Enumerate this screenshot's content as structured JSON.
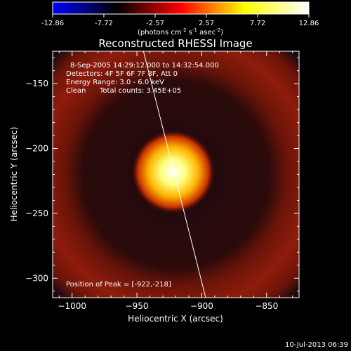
{
  "colorbar": {
    "ticks": [
      "-12.86",
      "-7.72",
      "-2.57",
      "2.57",
      "7.72",
      "12.86"
    ],
    "min": -12.86,
    "max": 12.86,
    "units_prefix": "(photons cm",
    "units_sup1": "-2",
    "units_mid": " s",
    "units_sup2": "-1",
    "units_mid2": " asec",
    "units_sup3": "-2",
    "units_suffix": ")",
    "colormap": [
      "#0000ff",
      "#000000",
      "#ff0000",
      "#ffff00",
      "#ffffff"
    ]
  },
  "chart_data": {
    "type": "heatmap",
    "title": "Reconstructed RHESSI Image",
    "xlabel": "Heliocentric X (arcsec)",
    "ylabel": "Heliocentric Y (arcsec)",
    "xlim": [
      -1015,
      -825
    ],
    "ylim": [
      -315,
      -125
    ],
    "xticks": [
      -1000,
      -950,
      -900,
      -850
    ],
    "yticks": [
      -300,
      -250,
      -200,
      -150
    ],
    "xtick_labels": [
      "−1000",
      "−950",
      "−900",
      "−850"
    ],
    "ytick_labels": [
      "−300",
      "−250",
      "−200",
      "−150"
    ],
    "peak": {
      "x": -922,
      "y": -218
    },
    "ring_radius_arcsec": 62,
    "annotations": {
      "time_range": "8-Sep-2005 14:29:12.000 to 14:32:54.000",
      "detectors": "Detectors: 4F 5F 6F 7F 8F, Att 0",
      "energy": "Energy Range: 3.0 - 6.0 keV",
      "clean_label": "Clean",
      "total_counts": "Total counts: 3.45E+05",
      "peak_label": "Position of Peak = [-922,-218]"
    },
    "limb_line": [
      [
        -945,
        -125
      ],
      [
        -897,
        -315
      ]
    ]
  },
  "footer": {
    "date": "10-Jul-2013 06:39"
  }
}
